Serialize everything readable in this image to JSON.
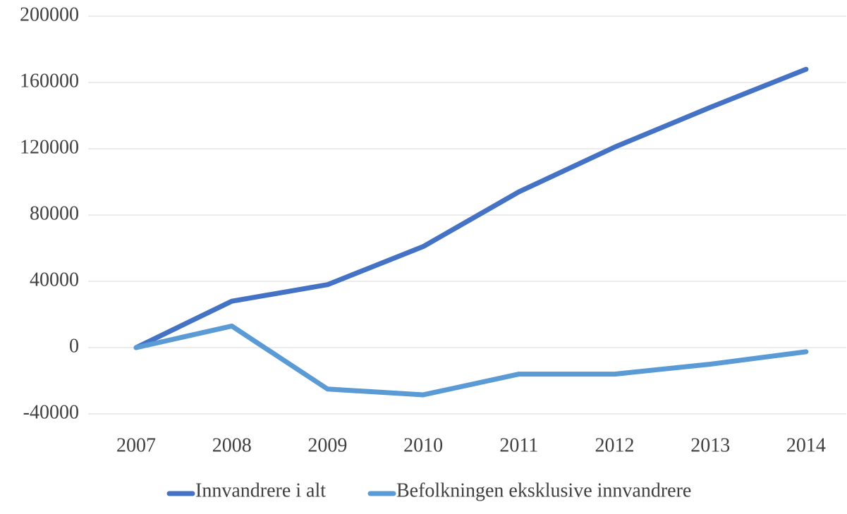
{
  "chart_data": {
    "type": "line",
    "categories": [
      "2007",
      "2008",
      "2009",
      "2010",
      "2011",
      "2012",
      "2013",
      "2014"
    ],
    "series": [
      {
        "name": "Innvandrere i alt",
        "color": "#4472c4",
        "values": [
          0,
          28000,
          38000,
          61000,
          94000,
          121000,
          145000,
          168000
        ]
      },
      {
        "name": "Befolkningen eksklusive innvandrere",
        "color": "#5b9bd5",
        "values": [
          0,
          13000,
          -25000,
          -28500,
          -16000,
          -16000,
          -10000,
          -2500
        ]
      }
    ],
    "ylim": [
      -40000,
      200000
    ],
    "yticks": [
      -40000,
      0,
      40000,
      80000,
      120000,
      160000,
      200000
    ],
    "grid": true,
    "legend": "bottom"
  }
}
